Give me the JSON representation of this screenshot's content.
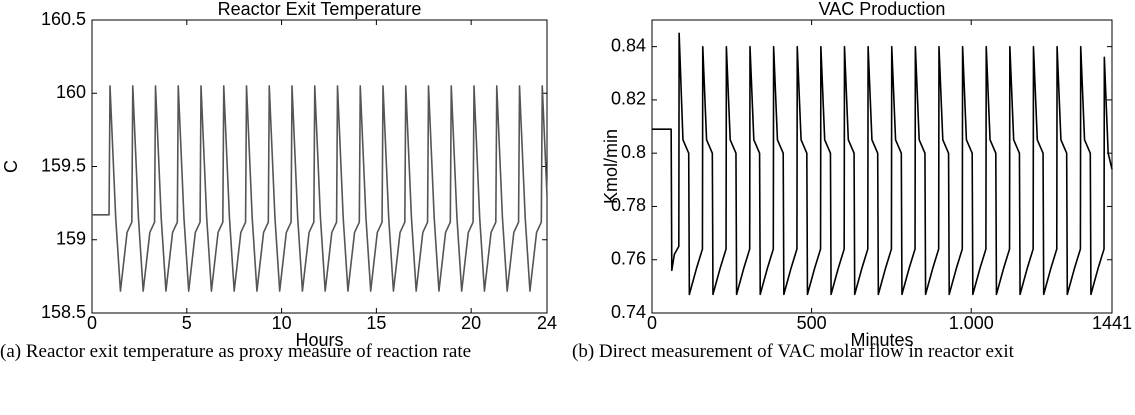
{
  "chart_data": [
    {
      "type": "line",
      "title": "Reactor Exit Temperature",
      "xlabel": "Hours",
      "ylabel": "C",
      "color": "#555555",
      "caption": "(a) Reactor exit temperature as proxy measure of reaction rate",
      "xlim": [
        0,
        24
      ],
      "xticks": [
        0,
        5,
        10,
        15,
        20,
        24
      ],
      "ylim": [
        158.5,
        160.5
      ],
      "yticks": [
        158.5,
        159,
        159.5,
        160,
        160.5
      ],
      "x": [
        0,
        0.9,
        0.95,
        1.25,
        1.5,
        1.85,
        2.1,
        2.15,
        2.45,
        2.7,
        3.05,
        3.3,
        3.35,
        3.65,
        3.9,
        4.25,
        4.5,
        4.55,
        4.85,
        5.1,
        5.45,
        5.7,
        5.75,
        6.05,
        6.3,
        6.65,
        6.9,
        6.95,
        7.25,
        7.5,
        7.85,
        8.1,
        8.15,
        8.45,
        8.7,
        9.05,
        9.3,
        9.35,
        9.65,
        9.9,
        10.25,
        10.5,
        10.55,
        10.85,
        11.1,
        11.45,
        11.7,
        11.75,
        12.05,
        12.3,
        12.65,
        12.9,
        12.95,
        13.25,
        13.5,
        13.85,
        14.1,
        14.15,
        14.45,
        14.7,
        15.05,
        15.3,
        15.35,
        15.65,
        15.9,
        16.25,
        16.5,
        16.55,
        16.85,
        17.1,
        17.45,
        17.7,
        17.75,
        18.05,
        18.3,
        18.65,
        18.9,
        18.95,
        19.25,
        19.5,
        19.85,
        20.1,
        20.15,
        20.45,
        20.7,
        21.05,
        21.3,
        21.35,
        21.65,
        21.9,
        22.25,
        22.5,
        22.55,
        22.85,
        23.1,
        23.45,
        23.7,
        23.75,
        24
      ],
      "values": [
        159.17,
        159.17,
        160.05,
        159.15,
        158.65,
        159.05,
        159.12,
        160.05,
        159.15,
        158.65,
        159.05,
        159.12,
        160.05,
        159.15,
        158.65,
        159.05,
        159.12,
        160.05,
        159.15,
        158.65,
        159.05,
        159.12,
        160.05,
        159.15,
        158.65,
        159.05,
        159.12,
        160.05,
        159.15,
        158.65,
        159.05,
        159.12,
        160.05,
        159.15,
        158.65,
        159.05,
        159.12,
        160.05,
        159.15,
        158.65,
        159.05,
        159.12,
        160.05,
        159.15,
        158.65,
        159.05,
        159.12,
        160.05,
        159.15,
        158.65,
        159.05,
        159.12,
        160.05,
        159.15,
        158.65,
        159.05,
        159.12,
        160.05,
        159.15,
        158.65,
        159.05,
        159.12,
        160.05,
        159.15,
        158.65,
        159.05,
        159.12,
        160.05,
        159.15,
        158.65,
        159.05,
        159.12,
        160.05,
        159.15,
        158.65,
        159.05,
        159.12,
        160.05,
        159.15,
        158.65,
        159.05,
        159.12,
        160.05,
        159.15,
        158.65,
        159.05,
        159.12,
        160.05,
        159.15,
        158.65,
        159.05,
        159.12,
        160.05,
        159.15,
        158.65,
        159.05,
        159.12,
        160.05,
        159.3
      ]
    },
    {
      "type": "line",
      "title": "VAC Production",
      "xlabel": "Minutes",
      "ylabel": "Kmol/min",
      "color": "#000000",
      "caption": "(b) Direct measurement of VAC molar flow in reactor exit",
      "xlim": [
        0,
        1441
      ],
      "xticks": [
        0,
        500,
        {
          "value": 1000,
          "label": "1.000"
        },
        1441
      ],
      "ylim": [
        0.74,
        0.85
      ],
      "yticks": [
        0.74,
        0.76,
        0.78,
        0.8,
        0.82,
        0.84
      ],
      "x": [
        0,
        60,
        62,
        70,
        84,
        85,
        97,
        115,
        117,
        140,
        158,
        159,
        171,
        189,
        191,
        214,
        232,
        233,
        245,
        263,
        265,
        288,
        306,
        307,
        319,
        337,
        339,
        362,
        380,
        381,
        393,
        411,
        413,
        436,
        454,
        455,
        467,
        485,
        487,
        510,
        528,
        529,
        541,
        559,
        561,
        584,
        602,
        603,
        615,
        633,
        635,
        658,
        676,
        677,
        689,
        707,
        709,
        732,
        750,
        751,
        763,
        781,
        783,
        806,
        824,
        825,
        837,
        855,
        857,
        880,
        898,
        899,
        911,
        929,
        931,
        954,
        972,
        973,
        985,
        1003,
        1005,
        1028,
        1046,
        1047,
        1059,
        1077,
        1079,
        1102,
        1120,
        1121,
        1133,
        1151,
        1153,
        1176,
        1194,
        1195,
        1207,
        1225,
        1227,
        1250,
        1268,
        1269,
        1281,
        1299,
        1301,
        1324,
        1342,
        1343,
        1355,
        1373,
        1375,
        1398,
        1416,
        1417,
        1429,
        1441
      ],
      "values": [
        0.809,
        0.809,
        0.756,
        0.762,
        0.765,
        0.845,
        0.805,
        0.8,
        0.747,
        0.757,
        0.764,
        0.84,
        0.805,
        0.8,
        0.747,
        0.757,
        0.764,
        0.84,
        0.805,
        0.8,
        0.747,
        0.757,
        0.764,
        0.84,
        0.805,
        0.8,
        0.747,
        0.757,
        0.764,
        0.84,
        0.805,
        0.8,
        0.747,
        0.757,
        0.764,
        0.84,
        0.805,
        0.8,
        0.747,
        0.757,
        0.764,
        0.84,
        0.805,
        0.8,
        0.747,
        0.757,
        0.764,
        0.84,
        0.805,
        0.8,
        0.747,
        0.757,
        0.764,
        0.84,
        0.805,
        0.8,
        0.747,
        0.757,
        0.764,
        0.84,
        0.805,
        0.8,
        0.747,
        0.757,
        0.764,
        0.84,
        0.805,
        0.8,
        0.747,
        0.757,
        0.764,
        0.84,
        0.805,
        0.8,
        0.747,
        0.757,
        0.764,
        0.84,
        0.805,
        0.8,
        0.747,
        0.757,
        0.764,
        0.84,
        0.805,
        0.8,
        0.747,
        0.757,
        0.764,
        0.84,
        0.805,
        0.8,
        0.747,
        0.757,
        0.764,
        0.84,
        0.805,
        0.8,
        0.747,
        0.757,
        0.764,
        0.84,
        0.805,
        0.8,
        0.747,
        0.757,
        0.764,
        0.84,
        0.805,
        0.8,
        0.747,
        0.757,
        0.764,
        0.836,
        0.8,
        0.794
      ]
    }
  ]
}
